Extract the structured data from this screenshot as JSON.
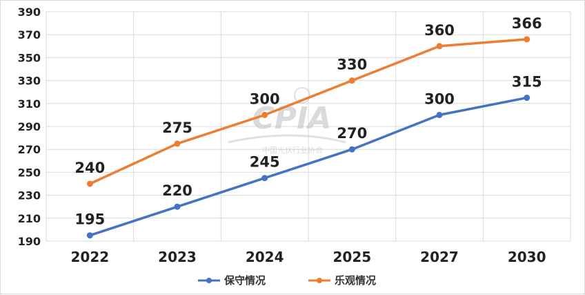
{
  "chart_data": {
    "type": "line",
    "title": "",
    "xlabel": "",
    "ylabel": "",
    "categories": [
      "2022",
      "2023",
      "2024",
      "2025",
      "2027",
      "2030"
    ],
    "ylim": [
      190,
      390
    ],
    "yticks": [
      190,
      210,
      230,
      250,
      270,
      290,
      310,
      330,
      350,
      370,
      390
    ],
    "grid": true,
    "legend_position": "bottom",
    "series": [
      {
        "name": "保守情况",
        "color": "#4472C4",
        "values": [
          195,
          220,
          245,
          270,
          300,
          315
        ]
      },
      {
        "name": "乐观情况",
        "color": "#ED7D31",
        "values": [
          240,
          275,
          300,
          330,
          360,
          366
        ]
      }
    ],
    "watermark": {
      "logo": "CPIA",
      "text": "中国光伏行业协会"
    }
  }
}
